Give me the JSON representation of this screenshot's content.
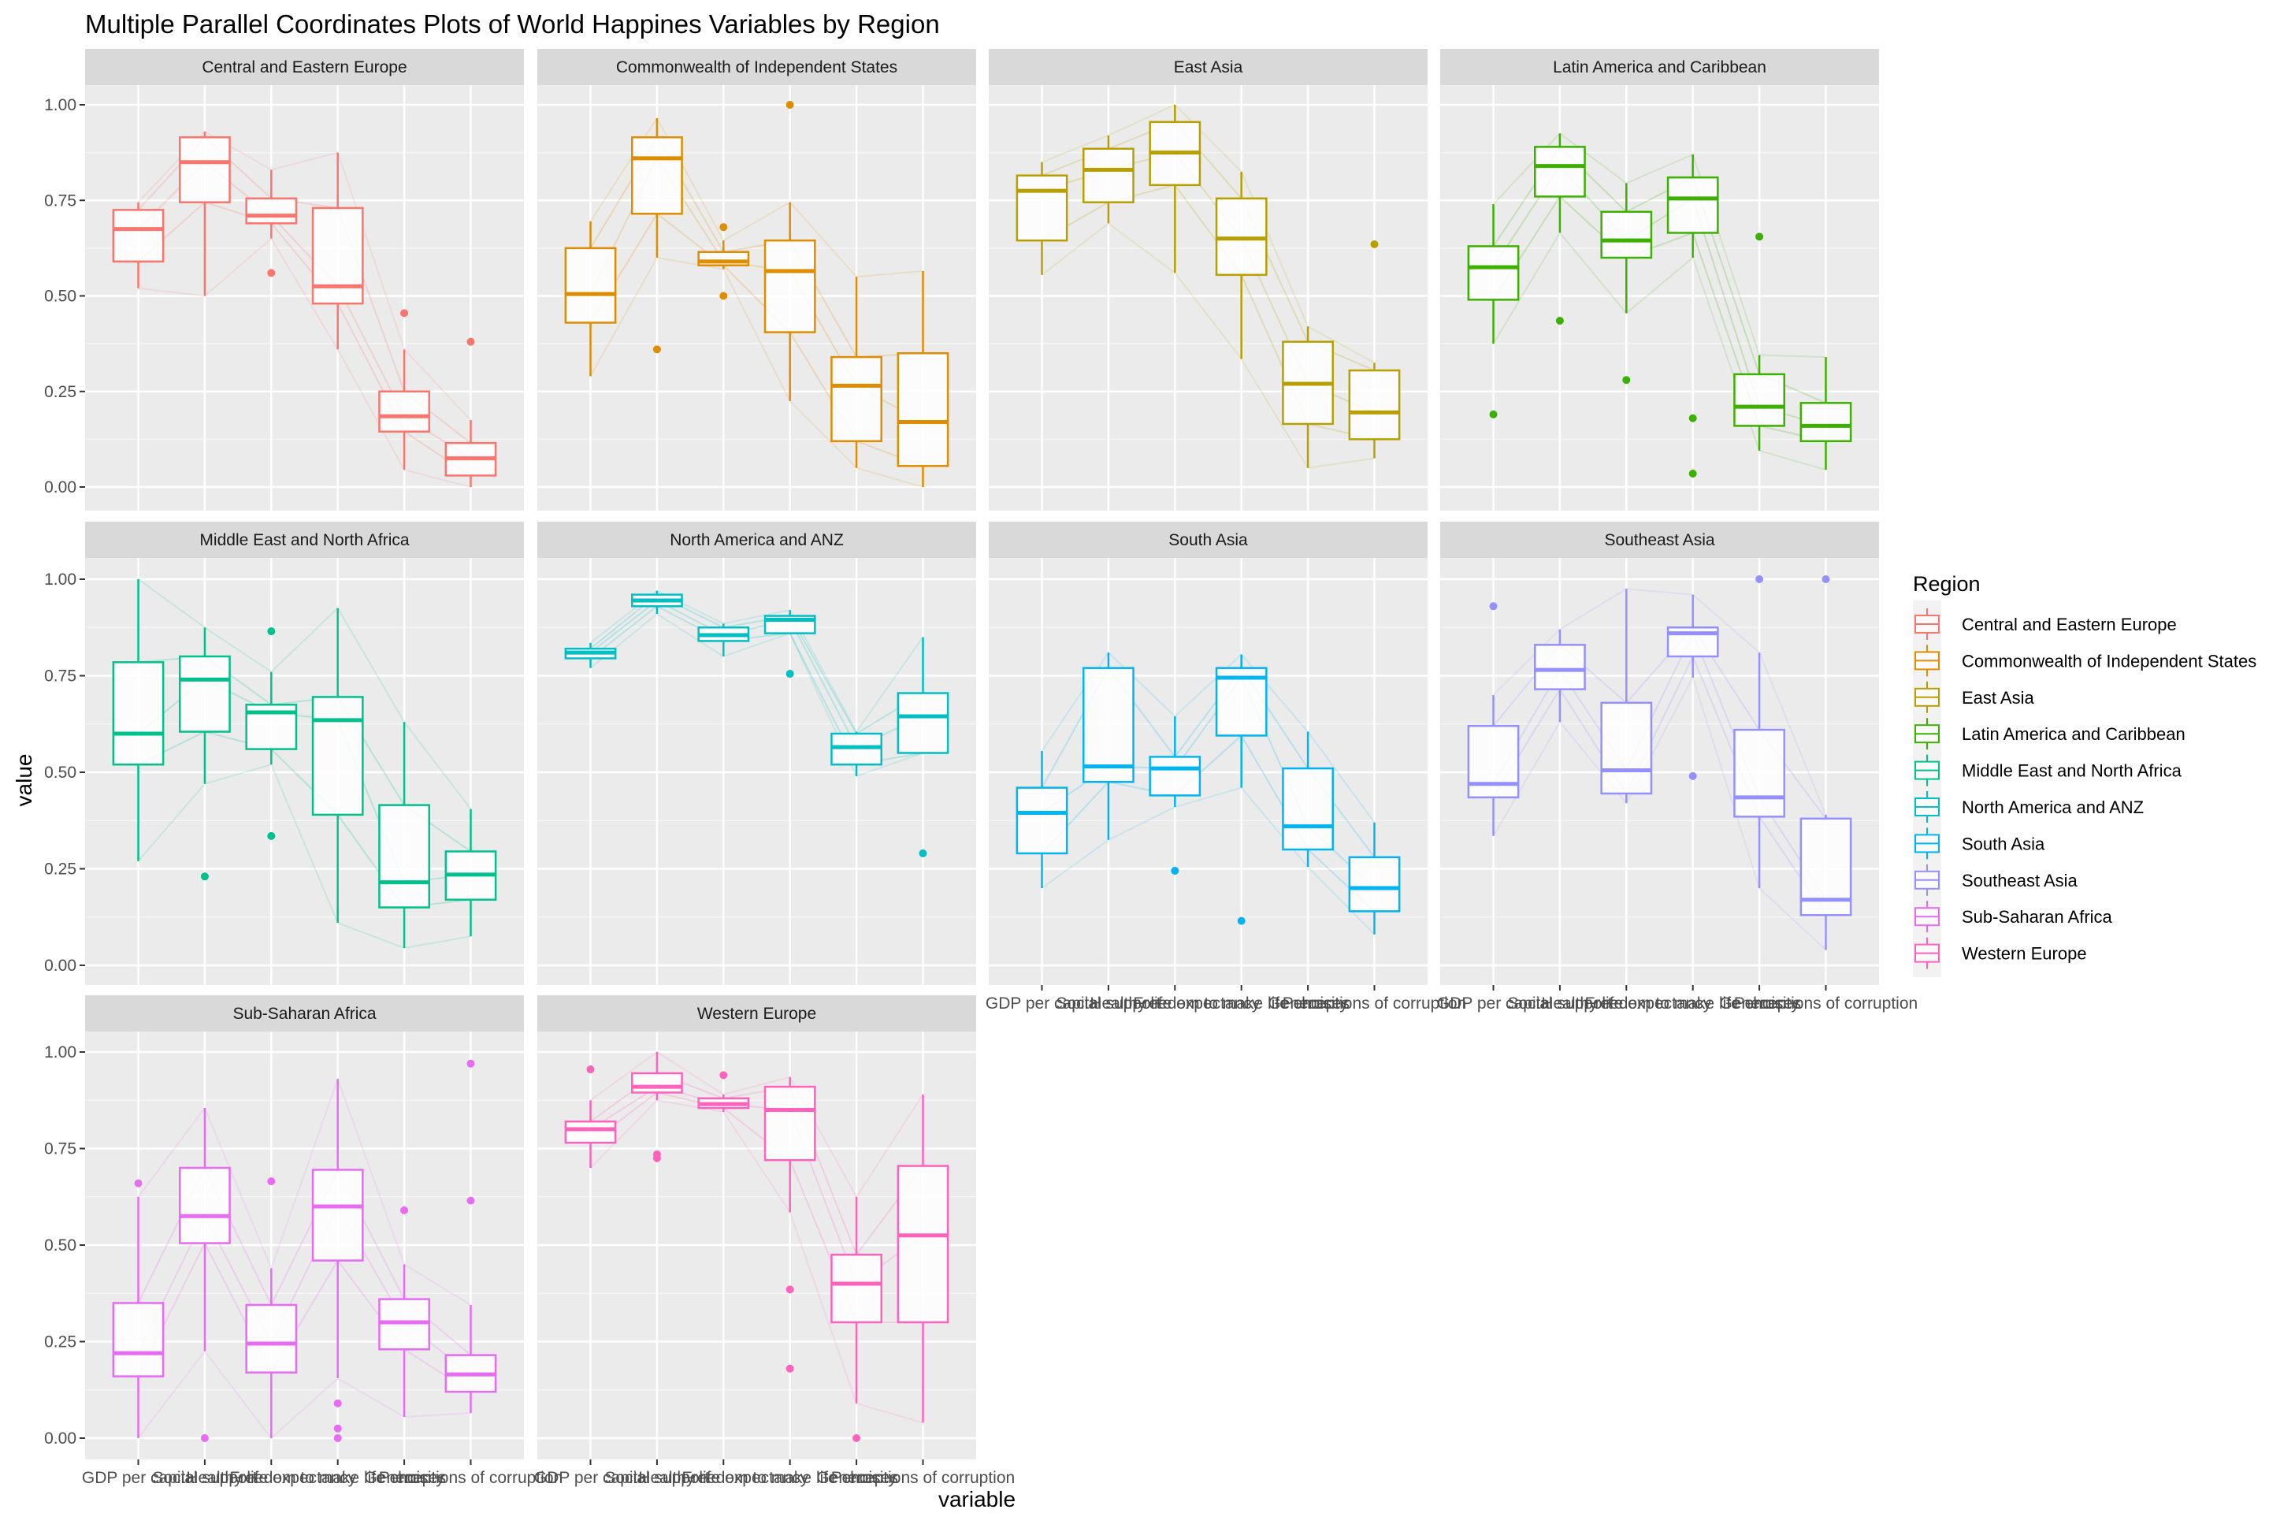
{
  "chart_data": {
    "type": "boxplot",
    "subtype": "faceted parallel coordinates with boxplots",
    "title": "Multiple Parallel Coordinates Plots of World Happines Variables by Region",
    "xlabel": "variable",
    "ylabel": "value",
    "ylim": [
      0,
      1
    ],
    "y_ticks": [
      "0.00",
      "0.25",
      "0.50",
      "0.75",
      "1.00"
    ],
    "grid": true,
    "legend": {
      "title": "Region",
      "position": "right"
    },
    "variables": [
      "GDP per capita",
      "Social support",
      "Healthy life expectancy",
      "Freedom to make life choices",
      "Generosity",
      "Perceptions of corruption"
    ],
    "panels": [
      {
        "region": "Central and Eastern Europe",
        "color": "#F8766D",
        "boxes": [
          {
            "lw": 0.52,
            "q1": 0.59,
            "med": 0.675,
            "q3": 0.725,
            "uw": 0.745,
            "out": []
          },
          {
            "lw": 0.5,
            "q1": 0.745,
            "med": 0.85,
            "q3": 0.915,
            "uw": 0.93,
            "out": []
          },
          {
            "lw": 0.65,
            "q1": 0.69,
            "med": 0.71,
            "q3": 0.755,
            "uw": 0.83,
            "out": [
              0.56
            ]
          },
          {
            "lw": 0.36,
            "q1": 0.48,
            "med": 0.525,
            "q3": 0.73,
            "uw": 0.875,
            "out": []
          },
          {
            "lw": 0.045,
            "q1": 0.145,
            "med": 0.185,
            "q3": 0.25,
            "uw": 0.36,
            "out": [
              0.455
            ]
          },
          {
            "lw": 0.0,
            "q1": 0.03,
            "med": 0.075,
            "q3": 0.115,
            "uw": 0.175,
            "out": [
              0.38
            ]
          }
        ]
      },
      {
        "region": "Commonwealth of Independent States",
        "color": "#DE8C00",
        "boxes": [
          {
            "lw": 0.29,
            "q1": 0.43,
            "med": 0.505,
            "q3": 0.625,
            "uw": 0.695,
            "out": []
          },
          {
            "lw": 0.6,
            "q1": 0.715,
            "med": 0.86,
            "q3": 0.915,
            "uw": 0.965,
            "out": [
              0.36
            ]
          },
          {
            "lw": 0.57,
            "q1": 0.58,
            "med": 0.59,
            "q3": 0.615,
            "uw": 0.645,
            "out": [
              0.68,
              0.5
            ]
          },
          {
            "lw": 0.225,
            "q1": 0.405,
            "med": 0.565,
            "q3": 0.645,
            "uw": 0.745,
            "out": [
              1.0
            ]
          },
          {
            "lw": 0.05,
            "q1": 0.12,
            "med": 0.265,
            "q3": 0.34,
            "uw": 0.55,
            "out": []
          },
          {
            "lw": 0.0,
            "q1": 0.055,
            "med": 0.17,
            "q3": 0.35,
            "uw": 0.565,
            "out": []
          }
        ]
      },
      {
        "region": "East Asia",
        "color": "#B79F00",
        "boxes": [
          {
            "lw": 0.555,
            "q1": 0.645,
            "med": 0.775,
            "q3": 0.815,
            "uw": 0.85,
            "out": []
          },
          {
            "lw": 0.69,
            "q1": 0.745,
            "med": 0.83,
            "q3": 0.885,
            "uw": 0.92,
            "out": []
          },
          {
            "lw": 0.56,
            "q1": 0.79,
            "med": 0.875,
            "q3": 0.955,
            "uw": 1.0,
            "out": []
          },
          {
            "lw": 0.335,
            "q1": 0.555,
            "med": 0.65,
            "q3": 0.755,
            "uw": 0.825,
            "out": []
          },
          {
            "lw": 0.05,
            "q1": 0.165,
            "med": 0.27,
            "q3": 0.38,
            "uw": 0.42,
            "out": []
          },
          {
            "lw": 0.075,
            "q1": 0.125,
            "med": 0.195,
            "q3": 0.305,
            "uw": 0.325,
            "out": [
              0.635
            ]
          }
        ]
      },
      {
        "region": "Latin America and Caribbean",
        "color": "#00BA38",
        "color_display": "#3CB000",
        "boxes": [
          {
            "lw": 0.375,
            "q1": 0.49,
            "med": 0.575,
            "q3": 0.63,
            "uw": 0.74,
            "out": [
              0.19
            ]
          },
          {
            "lw": 0.665,
            "q1": 0.76,
            "med": 0.84,
            "q3": 0.89,
            "uw": 0.925,
            "out": [
              0.435
            ]
          },
          {
            "lw": 0.455,
            "q1": 0.6,
            "med": 0.645,
            "q3": 0.72,
            "uw": 0.795,
            "out": [
              0.28
            ]
          },
          {
            "lw": 0.6,
            "q1": 0.665,
            "med": 0.755,
            "q3": 0.81,
            "uw": 0.87,
            "out": [
              0.18,
              0.035
            ]
          },
          {
            "lw": 0.095,
            "q1": 0.16,
            "med": 0.21,
            "q3": 0.295,
            "uw": 0.345,
            "out": [
              0.655
            ]
          },
          {
            "lw": 0.045,
            "q1": 0.12,
            "med": 0.16,
            "q3": 0.22,
            "uw": 0.34,
            "out": []
          }
        ]
      },
      {
        "region": "Middle East and North Africa",
        "color": "#00C08B",
        "boxes": [
          {
            "lw": 0.27,
            "q1": 0.52,
            "med": 0.6,
            "q3": 0.785,
            "uw": 1.0,
            "out": []
          },
          {
            "lw": 0.47,
            "q1": 0.605,
            "med": 0.74,
            "q3": 0.8,
            "uw": 0.875,
            "out": [
              0.23
            ]
          },
          {
            "lw": 0.52,
            "q1": 0.56,
            "med": 0.655,
            "q3": 0.675,
            "uw": 0.76,
            "out": [
              0.865,
              0.335
            ]
          },
          {
            "lw": 0.11,
            "q1": 0.39,
            "med": 0.635,
            "q3": 0.695,
            "uw": 0.925,
            "out": []
          },
          {
            "lw": 0.045,
            "q1": 0.15,
            "med": 0.215,
            "q3": 0.415,
            "uw": 0.63,
            "out": []
          },
          {
            "lw": 0.075,
            "q1": 0.17,
            "med": 0.235,
            "q3": 0.295,
            "uw": 0.405,
            "out": []
          }
        ]
      },
      {
        "region": "North America and ANZ",
        "color": "#00BFC4",
        "boxes": [
          {
            "lw": 0.77,
            "q1": 0.795,
            "med": 0.81,
            "q3": 0.82,
            "uw": 0.835,
            "out": []
          },
          {
            "lw": 0.91,
            "q1": 0.93,
            "med": 0.945,
            "q3": 0.96,
            "uw": 0.97,
            "out": []
          },
          {
            "lw": 0.8,
            "q1": 0.84,
            "med": 0.855,
            "q3": 0.875,
            "uw": 0.885,
            "out": []
          },
          {
            "lw": 0.86,
            "q1": 0.86,
            "med": 0.895,
            "q3": 0.905,
            "uw": 0.92,
            "out": [
              0.755
            ]
          },
          {
            "lw": 0.49,
            "q1": 0.52,
            "med": 0.565,
            "q3": 0.6,
            "uw": 0.605,
            "out": []
          },
          {
            "lw": 0.55,
            "q1": 0.55,
            "med": 0.645,
            "q3": 0.705,
            "uw": 0.85,
            "out": [
              0.29
            ]
          }
        ]
      },
      {
        "region": "South Asia",
        "color": "#00B4F0",
        "boxes": [
          {
            "lw": 0.2,
            "q1": 0.29,
            "med": 0.395,
            "q3": 0.46,
            "uw": 0.555,
            "out": []
          },
          {
            "lw": 0.325,
            "q1": 0.475,
            "med": 0.515,
            "q3": 0.77,
            "uw": 0.81,
            "out": []
          },
          {
            "lw": 0.41,
            "q1": 0.44,
            "med": 0.51,
            "q3": 0.54,
            "uw": 0.645,
            "out": [
              0.245
            ]
          },
          {
            "lw": 0.46,
            "q1": 0.595,
            "med": 0.745,
            "q3": 0.77,
            "uw": 0.805,
            "out": [
              0.115
            ]
          },
          {
            "lw": 0.255,
            "q1": 0.3,
            "med": 0.36,
            "q3": 0.51,
            "uw": 0.605,
            "out": []
          },
          {
            "lw": 0.08,
            "q1": 0.14,
            "med": 0.2,
            "q3": 0.28,
            "uw": 0.37,
            "out": []
          }
        ]
      },
      {
        "region": "Southeast Asia",
        "color": "#9590FF",
        "boxes": [
          {
            "lw": 0.335,
            "q1": 0.435,
            "med": 0.47,
            "q3": 0.62,
            "uw": 0.7,
            "out": [
              0.93
            ]
          },
          {
            "lw": 0.63,
            "q1": 0.715,
            "med": 0.765,
            "q3": 0.83,
            "uw": 0.87,
            "out": []
          },
          {
            "lw": 0.42,
            "q1": 0.445,
            "med": 0.505,
            "q3": 0.68,
            "uw": 0.975,
            "out": []
          },
          {
            "lw": 0.745,
            "q1": 0.8,
            "med": 0.86,
            "q3": 0.875,
            "uw": 0.96,
            "out": [
              0.49
            ]
          },
          {
            "lw": 0.2,
            "q1": 0.385,
            "med": 0.435,
            "q3": 0.61,
            "uw": 0.81,
            "out": [
              1.0
            ]
          },
          {
            "lw": 0.04,
            "q1": 0.13,
            "med": 0.17,
            "q3": 0.38,
            "uw": 0.39,
            "out": [
              1.0
            ]
          }
        ]
      },
      {
        "region": "Sub-Saharan Africa",
        "color": "#E76BF3",
        "boxes": [
          {
            "lw": 0.0,
            "q1": 0.16,
            "med": 0.22,
            "q3": 0.35,
            "uw": 0.625,
            "out": [
              0.66
            ]
          },
          {
            "lw": 0.225,
            "q1": 0.505,
            "med": 0.575,
            "q3": 0.7,
            "uw": 0.855,
            "out": [
              0.0
            ]
          },
          {
            "lw": 0.0,
            "q1": 0.17,
            "med": 0.245,
            "q3": 0.345,
            "uw": 0.44,
            "out": [
              0.665
            ]
          },
          {
            "lw": 0.155,
            "q1": 0.46,
            "med": 0.6,
            "q3": 0.695,
            "uw": 0.93,
            "out": [
              0.09,
              0.025,
              0.0
            ]
          },
          {
            "lw": 0.055,
            "q1": 0.23,
            "med": 0.3,
            "q3": 0.36,
            "uw": 0.45,
            "out": [
              0.59
            ]
          },
          {
            "lw": 0.065,
            "q1": 0.12,
            "med": 0.165,
            "q3": 0.215,
            "uw": 0.345,
            "out": [
              0.97,
              0.615
            ]
          }
        ]
      },
      {
        "region": "Western Europe",
        "color": "#FF62BC",
        "boxes": [
          {
            "lw": 0.7,
            "q1": 0.765,
            "med": 0.8,
            "q3": 0.82,
            "uw": 0.875,
            "out": [
              0.955
            ]
          },
          {
            "lw": 0.875,
            "q1": 0.895,
            "med": 0.91,
            "q3": 0.945,
            "uw": 1.0,
            "out": [
              0.735,
              0.725
            ]
          },
          {
            "lw": 0.845,
            "q1": 0.855,
            "med": 0.865,
            "q3": 0.88,
            "uw": 0.89,
            "out": [
              0.94
            ]
          },
          {
            "lw": 0.585,
            "q1": 0.72,
            "med": 0.85,
            "q3": 0.91,
            "uw": 0.935,
            "out": [
              0.385,
              0.18
            ]
          },
          {
            "lw": 0.09,
            "q1": 0.3,
            "med": 0.4,
            "q3": 0.475,
            "uw": 0.625,
            "out": [
              0.0
            ]
          },
          {
            "lw": 0.04,
            "q1": 0.3,
            "med": 0.525,
            "q3": 0.705,
            "uw": 0.89,
            "out": []
          }
        ]
      }
    ]
  }
}
